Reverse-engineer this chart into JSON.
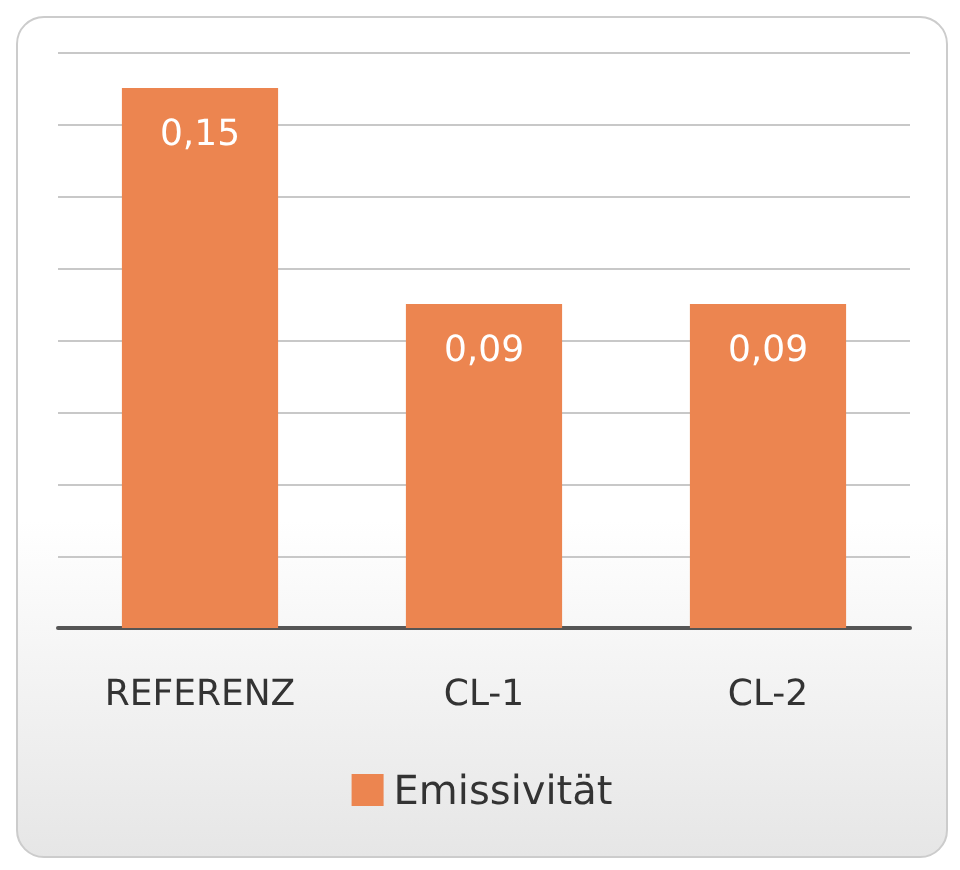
{
  "chart_data": {
    "type": "bar",
    "categories": [
      "REFERENZ",
      "CL-1",
      "CL-2"
    ],
    "series": [
      {
        "name": "Emissivität",
        "color": "#ec8550",
        "values": [
          0.15,
          0.09,
          0.09
        ],
        "value_labels": [
          "0,15",
          "0,09",
          "0,09"
        ]
      }
    ],
    "ylim": [
      0,
      0.16
    ],
    "yticks": [
      {
        "value": 0,
        "label": null
      },
      {
        "value": 0.02,
        "label": null
      },
      {
        "value": 0.04,
        "label": null
      },
      {
        "value": 0.06,
        "label": null
      },
      {
        "value": 0.08,
        "label": null
      },
      {
        "value": 0.1,
        "label": null
      },
      {
        "value": 0.12,
        "label": null
      },
      {
        "value": 0.14,
        "label": null
      },
      {
        "value": 0.16,
        "label": null
      }
    ],
    "tick_labels": "x",
    "grid": "y",
    "legend": "bottom"
  }
}
